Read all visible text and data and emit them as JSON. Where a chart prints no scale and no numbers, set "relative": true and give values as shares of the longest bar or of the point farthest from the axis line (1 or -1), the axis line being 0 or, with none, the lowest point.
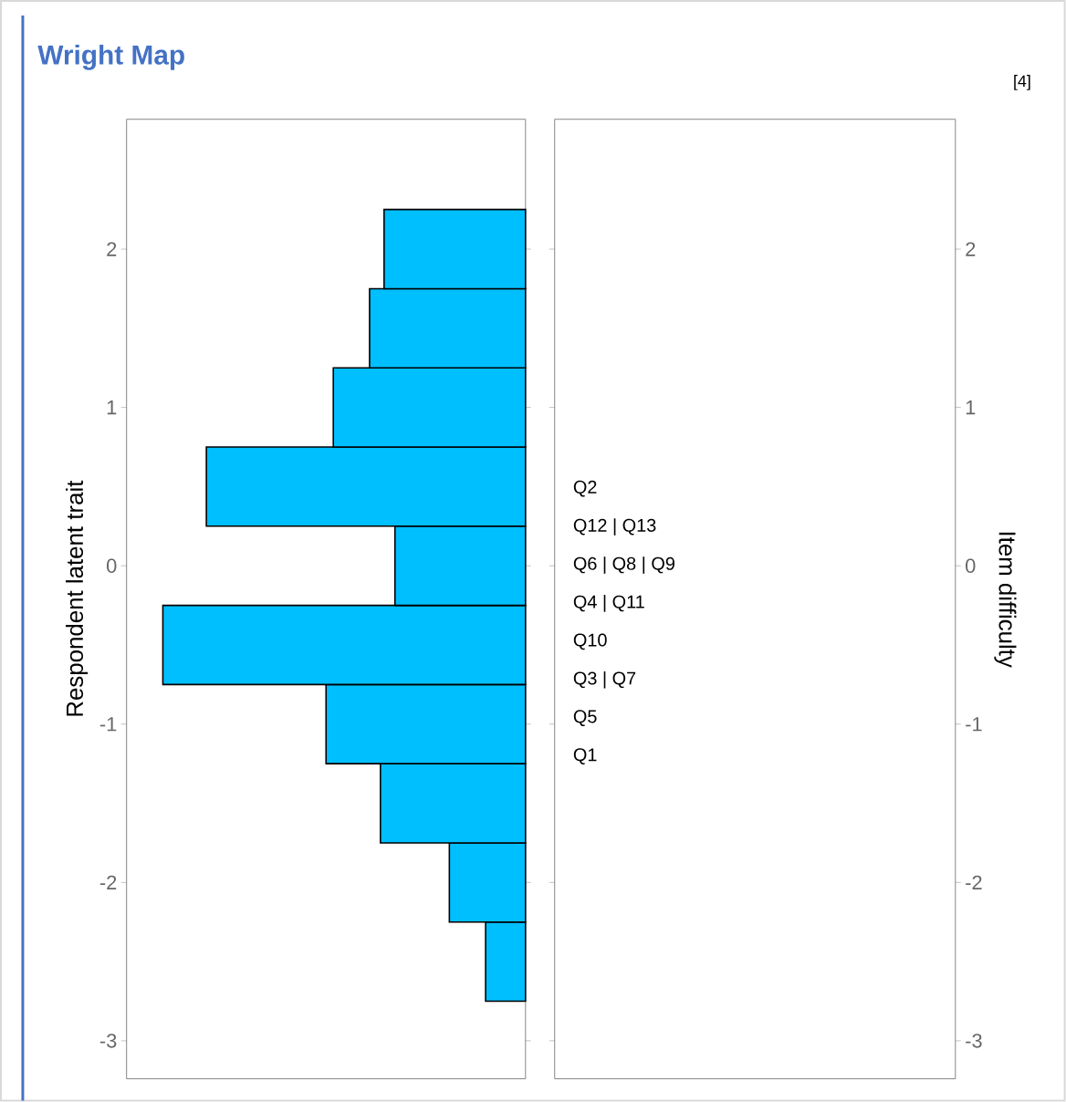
{
  "chart_data": {
    "type": "bar",
    "title": "Wright Map",
    "ylabel": "Respondent latent trait",
    "y2label": "Item difficulty",
    "orientation": "horizontal",
    "relative": true,
    "color": "#00bfff",
    "x": [
      -2.5,
      -2,
      -1.5,
      -1,
      -0.5,
      0,
      0.5,
      1,
      1.5,
      2
    ],
    "values": [
      0.11,
      0.21,
      0.4,
      0.55,
      1,
      0.36,
      0.88,
      0.53,
      0.43,
      0.39
    ],
    "ylim": [
      -3.24,
      2.82
    ],
    "yticks": [
      -3,
      -2,
      -1,
      0,
      1,
      2
    ],
    "tick_labels": "y",
    "y2lim": [
      -3.24,
      2.82
    ],
    "y2ticks": [
      -3,
      -2,
      -1,
      0,
      1,
      2
    ],
    "annotations": [
      "[4]",
      "Q2",
      "Q12 | Q13",
      "Q6 | Q8 | Q9",
      "Q4 | Q11",
      "Q10",
      "Q3 | Q7",
      "Q5",
      "Q1"
    ]
  }
}
